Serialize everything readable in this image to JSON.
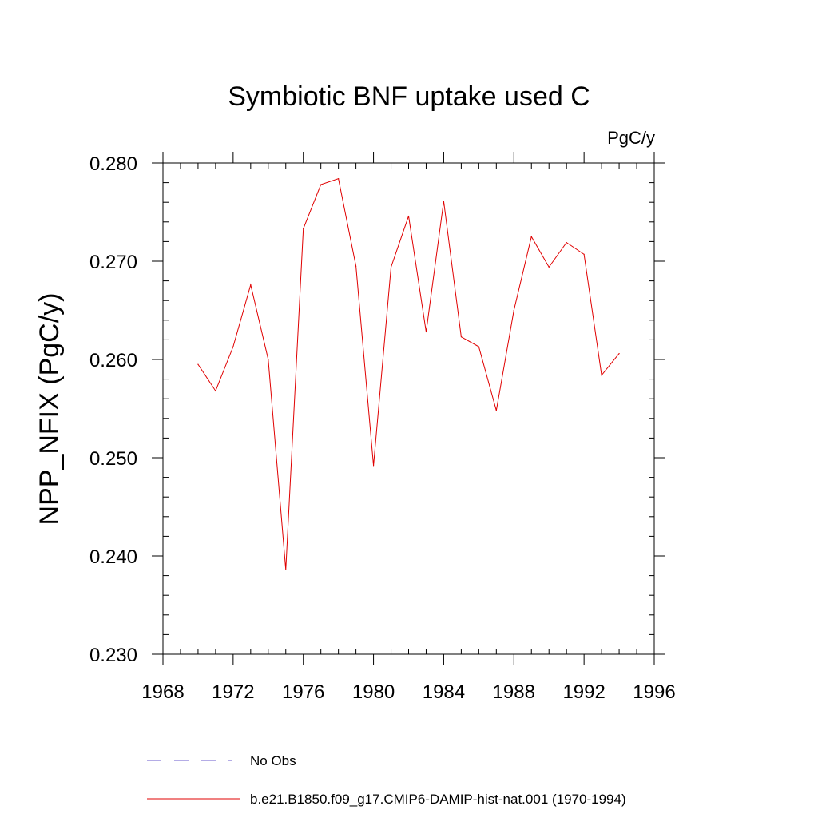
{
  "chart_data": {
    "type": "line",
    "title": "Symbiotic BNF uptake used C",
    "units_label": "PgC/y",
    "xlabel": "",
    "ylabel": "NPP_NFIX  (PgC/y)",
    "xlim": [
      1968,
      1996
    ],
    "ylim": [
      0.23,
      0.28
    ],
    "x_ticks": [
      "1968",
      "1972",
      "1976",
      "1980",
      "1984",
      "1988",
      "1992",
      "1996"
    ],
    "y_ticks": [
      "0.230",
      "0.240",
      "0.250",
      "0.260",
      "0.270",
      "0.280"
    ],
    "grid": false,
    "series": [
      {
        "name": "b.e21.B1850.f09_g17.CMIP6-DAMIP-hist-nat.001 (1970-1994)",
        "color": "#e00000",
        "style": "solid",
        "x": [
          1970,
          1971,
          1972,
          1973,
          1974,
          1975,
          1976,
          1977,
          1978,
          1979,
          1980,
          1981,
          1982,
          1983,
          1984,
          1985,
          1986,
          1987,
          1988,
          1989,
          1990,
          1991,
          1992,
          1993,
          1994
        ],
        "values": [
          0.2595,
          0.2568,
          0.2613,
          0.2676,
          0.26,
          0.2386,
          0.2733,
          0.2778,
          0.2784,
          0.2695,
          0.2492,
          0.2694,
          0.2746,
          0.2628,
          0.2761,
          0.2623,
          0.2613,
          0.2548,
          0.265,
          0.2725,
          0.2694,
          0.2719,
          0.2707,
          0.2584,
          0.2606
        ]
      }
    ],
    "legend": {
      "placement": "bottom",
      "entries": [
        {
          "label": "No Obs",
          "color": "#6a5acd",
          "style": "dashed"
        },
        {
          "label": "b.e21.B1850.f09_g17.CMIP6-DAMIP-hist-nat.001 (1970-1994)",
          "color": "#e00000",
          "style": "solid"
        }
      ]
    }
  }
}
